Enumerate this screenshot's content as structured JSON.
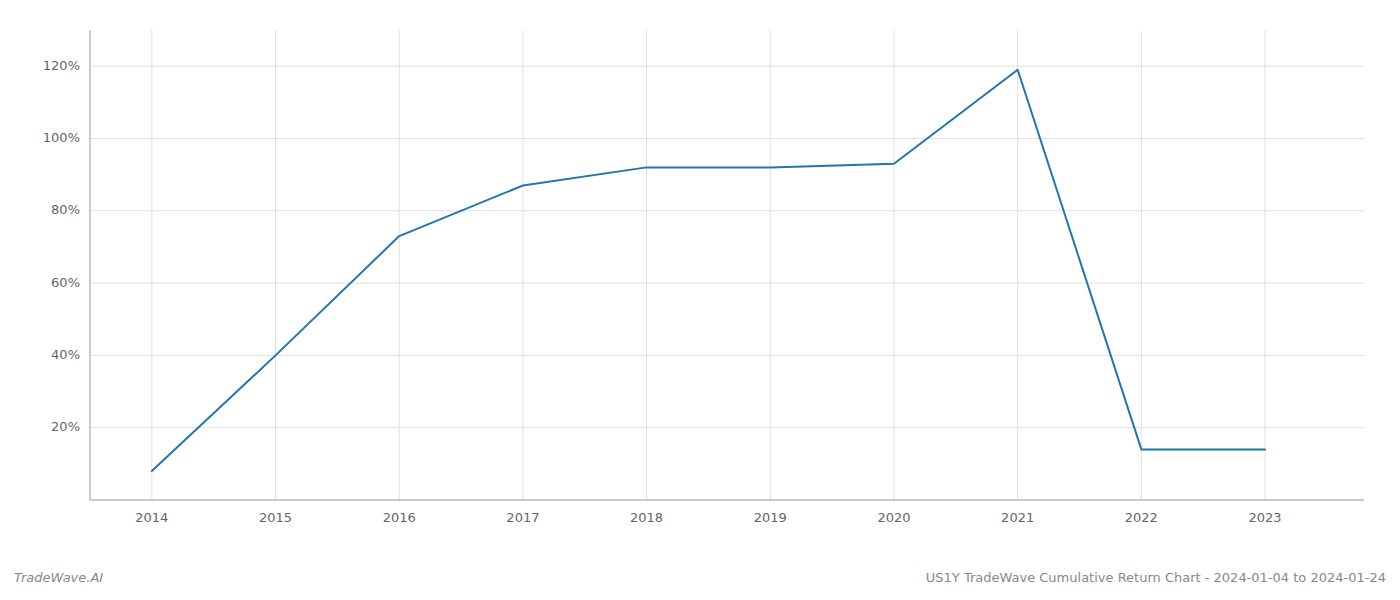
{
  "chart_data": {
    "type": "line",
    "x": [
      2014,
      2015,
      2016,
      2017,
      2018,
      2019,
      2020,
      2021,
      2022,
      2023
    ],
    "values": [
      8,
      40,
      73,
      87,
      92,
      92,
      93,
      119,
      14,
      14
    ],
    "color": "#2176ae",
    "xlim": [
      2013.5,
      2023.8
    ],
    "xticks": [
      2014,
      2015,
      2016,
      2017,
      2018,
      2019,
      2020,
      2021,
      2022,
      2023
    ],
    "ylim": [
      0,
      130
    ],
    "yticks": [
      {
        "value": 20,
        "label": "20%"
      },
      {
        "value": 40,
        "label": "40%"
      },
      {
        "value": 60,
        "label": "60%"
      },
      {
        "value": 80,
        "label": "80%"
      },
      {
        "value": 100,
        "label": "100%"
      },
      {
        "value": 120,
        "label": "120%"
      }
    ],
    "grid": true,
    "annotations": [
      "TradeWave.AI",
      "US1Y TradeWave Cumulative Return Chart - 2024-01-04 to 2024-01-24"
    ]
  }
}
